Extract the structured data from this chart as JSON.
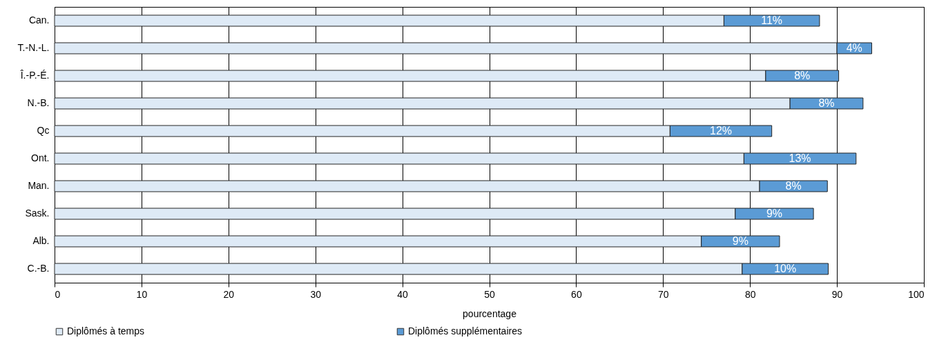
{
  "chart_data": {
    "type": "bar",
    "orientation": "horizontal",
    "stacked": true,
    "xlabel": "pourcentage",
    "categories": [
      "Can.",
      "T.-N.-L.",
      "Î.-P.-É.",
      "N.-B.",
      "Qc",
      "Ont.",
      "Man.",
      "Sask.",
      "Alb.",
      "C.-B."
    ],
    "series": [
      {
        "name": "Diplômés  à temps",
        "color": "#deeaf6",
        "values": [
          77.0,
          90.0,
          81.8,
          84.6,
          70.8,
          79.3,
          81.1,
          78.3,
          74.4,
          79.1
        ]
      },
      {
        "name": "Diplômés supplémentaires",
        "color": "#5b9bd5",
        "values": [
          11.0,
          4.0,
          8.4,
          8.4,
          11.7,
          12.9,
          7.8,
          9.0,
          9.0,
          9.9
        ],
        "value_labels": [
          "11%",
          "4%",
          "8%",
          "8%",
          "12%",
          "13%",
          "8%",
          "9%",
          "9%",
          "10%"
        ]
      }
    ],
    "xlim": [
      0,
      100
    ],
    "xticks": [
      0,
      10,
      20,
      30,
      40,
      50,
      60,
      70,
      80,
      90,
      100
    ],
    "grid": "x",
    "legend": "bottom"
  }
}
